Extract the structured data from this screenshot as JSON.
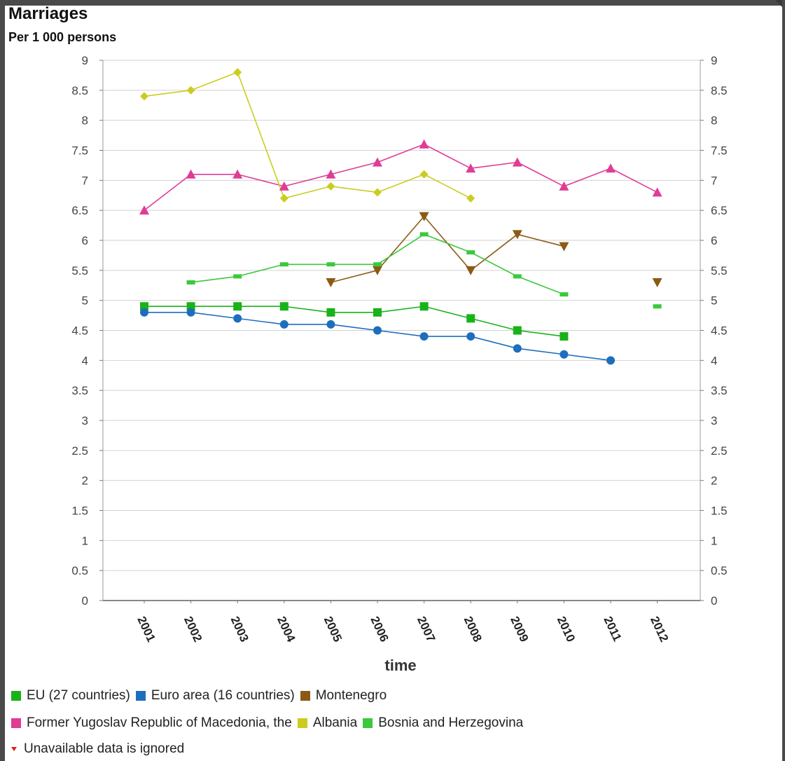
{
  "title": "Marriages",
  "subtitle": "Per 1 000 persons",
  "note": "Unavailable data is ignored",
  "chart_data": {
    "type": "line",
    "xlabel": "time",
    "ylabel": "",
    "x": [
      "2001",
      "2002",
      "2003",
      "2004",
      "2005",
      "2006",
      "2007",
      "2008",
      "2009",
      "2010",
      "2011",
      "2012"
    ],
    "ylim": [
      0,
      9
    ],
    "yticks": [
      0,
      0.5,
      1,
      1.5,
      2,
      2.5,
      3,
      3.5,
      4,
      4.5,
      5,
      5.5,
      6,
      6.5,
      7,
      7.5,
      8,
      8.5,
      9
    ],
    "grid": true,
    "legend_position": "bottom",
    "series": [
      {
        "name": "EU (27 countries)",
        "color": "#19b219",
        "marker": "square",
        "values": [
          4.9,
          4.9,
          4.9,
          4.9,
          4.8,
          4.8,
          4.9,
          4.7,
          4.5,
          4.4,
          null,
          null
        ]
      },
      {
        "name": "Euro area (16 countries)",
        "color": "#1e6ebe",
        "marker": "circle",
        "values": [
          4.8,
          4.8,
          4.7,
          4.6,
          4.6,
          4.5,
          4.4,
          4.4,
          4.2,
          4.1,
          4.0,
          null
        ]
      },
      {
        "name": "Montenegro",
        "color": "#8c5a14",
        "marker": "triangle-down",
        "values": [
          null,
          null,
          null,
          null,
          5.3,
          5.5,
          6.4,
          5.5,
          6.1,
          5.9,
          null,
          5.3
        ]
      },
      {
        "name": "Former Yugoslav Republic of Macedonia, the",
        "color": "#e03c96",
        "marker": "triangle-up",
        "values": [
          6.5,
          7.1,
          7.1,
          6.9,
          7.1,
          7.3,
          7.6,
          7.2,
          7.3,
          6.9,
          7.2,
          6.8
        ]
      },
      {
        "name": "Albania",
        "color": "#cccc20",
        "marker": "diamond",
        "values": [
          8.4,
          8.5,
          8.8,
          6.7,
          6.9,
          6.8,
          7.1,
          6.7,
          null,
          null,
          null,
          null
        ]
      },
      {
        "name": "Bosnia and Herzegovina",
        "color": "#3cc83c",
        "marker": "dash",
        "values": [
          null,
          5.3,
          5.4,
          5.6,
          5.6,
          5.6,
          6.1,
          5.8,
          5.4,
          5.1,
          null,
          4.9
        ]
      }
    ]
  }
}
